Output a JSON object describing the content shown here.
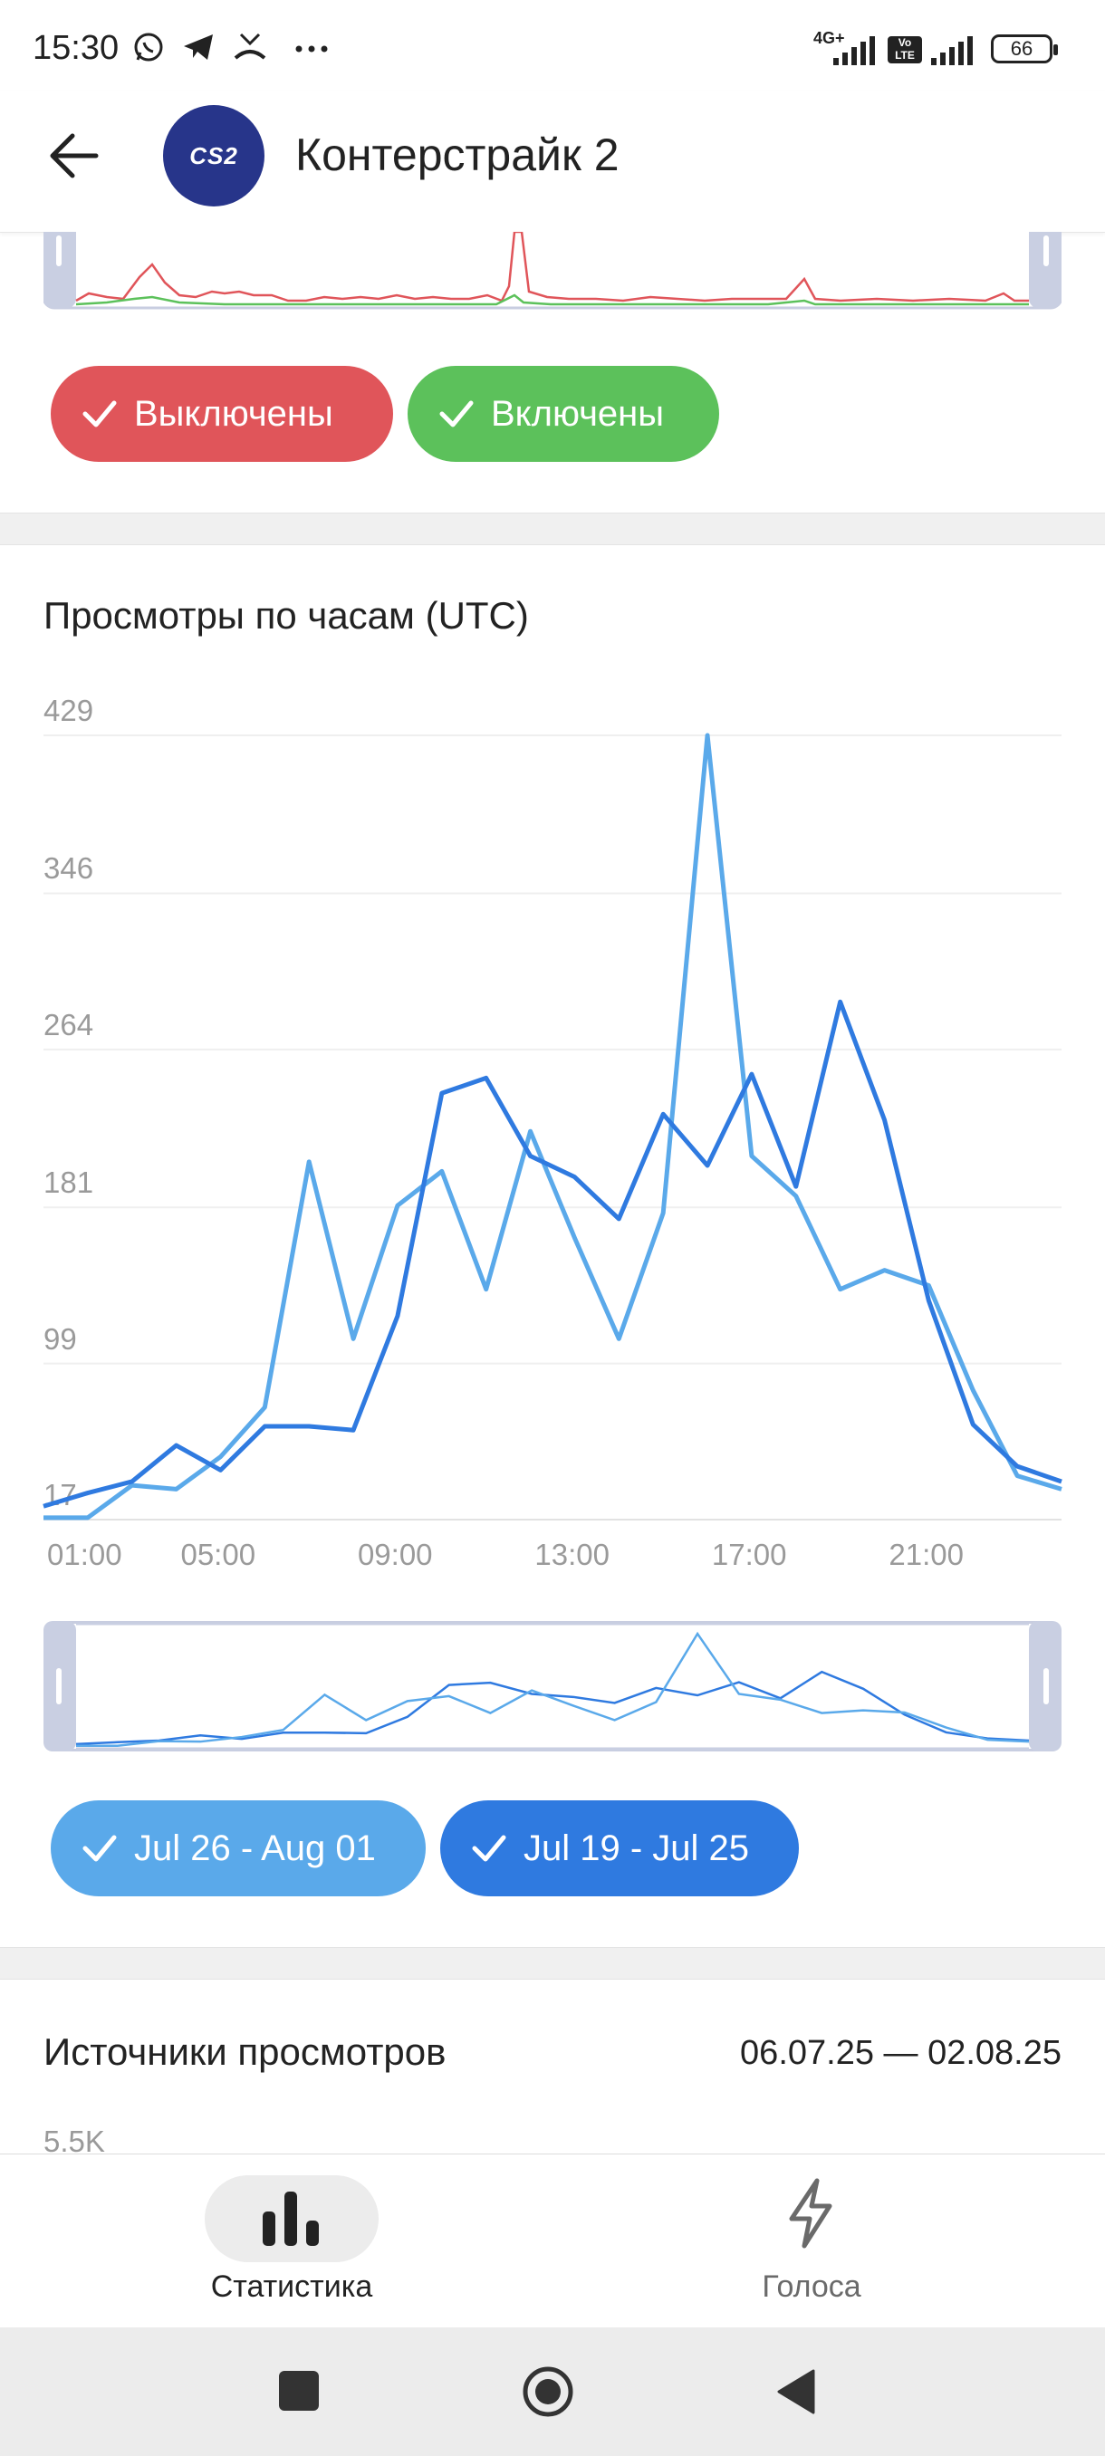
{
  "status_bar": {
    "time": "15:30",
    "app_icons": [
      "whatsapp-icon",
      "telegram-icon",
      "missed-call-icon",
      "more-dots-icon"
    ],
    "network_label": "4G+",
    "volte_label": "Vo LTE",
    "battery": "66"
  },
  "header": {
    "title": "Контерстрайк 2",
    "avatar_text": "CS2",
    "avatar_color": "#27358a"
  },
  "notifications_chart": {
    "series_colors": [
      "#e0555a",
      "#5cc15b"
    ],
    "chips": [
      {
        "label": "Выключены",
        "color": "#e0555a"
      },
      {
        "label": "Включены",
        "color": "#5cc15b"
      }
    ]
  },
  "hourly_views": {
    "title": "Просмотры по часам (UTC)",
    "chips": [
      {
        "label": "Jul 26 - Aug 01",
        "color": "#5aa9ea"
      },
      {
        "label": "Jul 19 - Jul 25",
        "color": "#2f7ae0"
      }
    ]
  },
  "chart_data": {
    "type": "line",
    "title": "Просмотры по часам (UTC)",
    "x": [
      0,
      1,
      2,
      3,
      4,
      5,
      6,
      7,
      8,
      9,
      10,
      11,
      12,
      13,
      14,
      15,
      16,
      17,
      18,
      19,
      20,
      21,
      22,
      23
    ],
    "x_tick_labels": [
      "01:00",
      "05:00",
      "09:00",
      "13:00",
      "17:00",
      "21:00"
    ],
    "y_tick_labels": [
      "17",
      "99",
      "181",
      "264",
      "346",
      "429"
    ],
    "ylim": [
      17,
      429
    ],
    "grid": true,
    "series": [
      {
        "name": "Jul 26 - Aug 01",
        "color": "#5aa9ea",
        "values": [
          18,
          18,
          35,
          33,
          50,
          76,
          205,
          112,
          182,
          200,
          138,
          221,
          165,
          112,
          178,
          429,
          208,
          187,
          138,
          148,
          140,
          85,
          40,
          33
        ]
      },
      {
        "name": "Jul 19 - Jul 25",
        "color": "#2f7ae0",
        "values": [
          24,
          31,
          37,
          56,
          43,
          66,
          66,
          64,
          124,
          241,
          249,
          208,
          197,
          175,
          230,
          203,
          251,
          192,
          289,
          227,
          132,
          67,
          45,
          37
        ]
      }
    ]
  },
  "sources": {
    "title": "Источники просмотров",
    "date_range": "06.07.25 — 02.08.25",
    "first_tick": "5.5K"
  },
  "bottom_nav": {
    "items": [
      {
        "label": "Статистика",
        "icon": "bar-chart-icon",
        "active": true
      },
      {
        "label": "Голоса",
        "icon": "lightning-icon",
        "active": false
      }
    ]
  }
}
